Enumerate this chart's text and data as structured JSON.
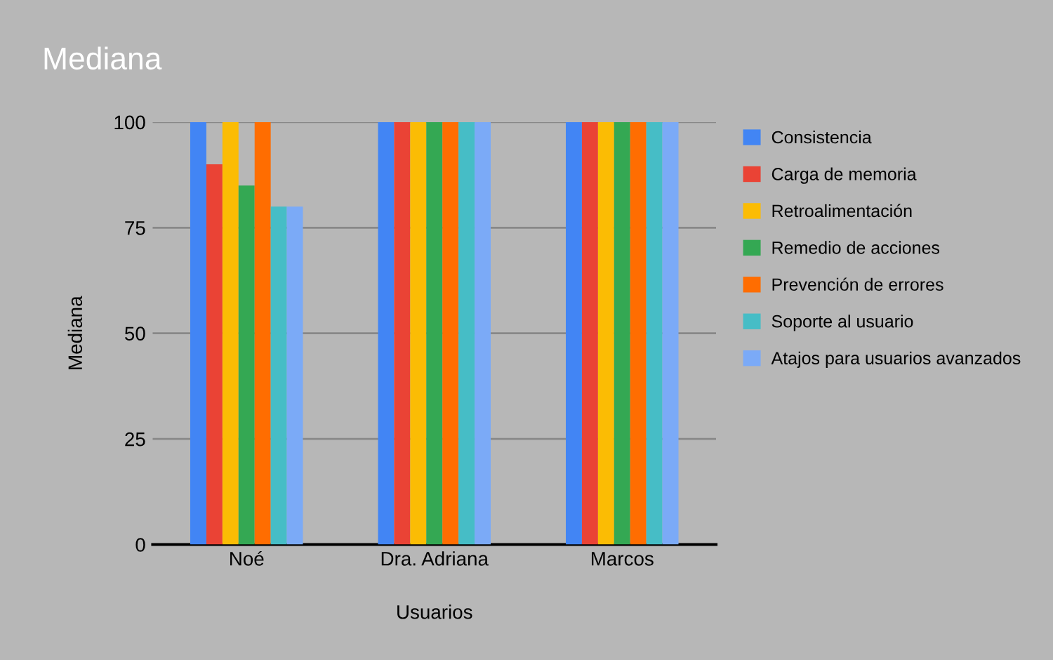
{
  "chart_data": {
    "type": "bar",
    "title": "Mediana",
    "xlabel": "Usuarios",
    "ylabel": "Mediana",
    "categories": [
      "Noé",
      "Dra. Adriana",
      "Marcos"
    ],
    "series": [
      {
        "name": "Consistencia",
        "color": "#4285f4",
        "values": [
          100,
          100,
          100
        ]
      },
      {
        "name": "Carga de memoria",
        "color": "#ea4335",
        "values": [
          90,
          100,
          100
        ]
      },
      {
        "name": "Retroalimentación",
        "color": "#fbbc04",
        "values": [
          100,
          100,
          100
        ]
      },
      {
        "name": "Remedio de acciones",
        "color": "#34a853",
        "values": [
          85,
          100,
          100
        ]
      },
      {
        "name": "Prevención de errores",
        "color": "#ff6d01",
        "values": [
          100,
          100,
          100
        ]
      },
      {
        "name": "Soporte al usuario",
        "color": "#46bdc6",
        "values": [
          80,
          100,
          100
        ]
      },
      {
        "name": "Atajos para usuarios avanzados",
        "color": "#7baaf7",
        "values": [
          80,
          100,
          100
        ]
      }
    ],
    "ylim": [
      0,
      100
    ],
    "yticks": [
      0,
      25,
      50,
      75,
      100
    ],
    "grid": "y",
    "legend": "right"
  }
}
